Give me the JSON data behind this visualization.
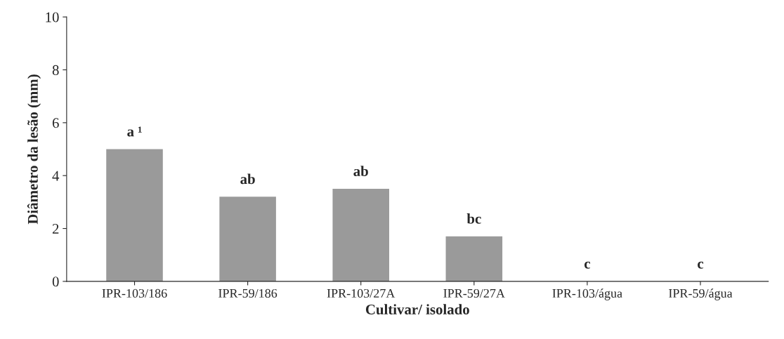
{
  "chart_data": {
    "type": "bar",
    "xlabel": "Cultivar/ isolado",
    "ylabel": "Diâmetro da lesão (mm)",
    "categories": [
      "IPR-103/186",
      "IPR-59/186",
      "IPR-103/27A",
      "IPR-59/27A",
      "IPR-103/água",
      "IPR-59/água"
    ],
    "values": [
      5.0,
      3.2,
      3.5,
      1.7,
      0,
      0
    ],
    "color": "#9a9a9a",
    "ylim": [
      0,
      10
    ],
    "yticks": [
      0,
      2,
      4,
      6,
      8,
      10
    ],
    "grid": false,
    "legend": false,
    "annotations": [
      {
        "text": "a ¹",
        "x": "IPR-103/186",
        "y": 5.0
      },
      {
        "text": "ab",
        "x": "IPR-59/186",
        "y": 3.2
      },
      {
        "text": "ab",
        "x": "IPR-103/27A",
        "y": 3.5
      },
      {
        "text": "bc",
        "x": "IPR-59/27A",
        "y": 1.7
      },
      {
        "text": "c",
        "x": "IPR-103/água",
        "y": 0
      },
      {
        "text": "c",
        "x": "IPR-59/água",
        "y": 0
      }
    ]
  }
}
